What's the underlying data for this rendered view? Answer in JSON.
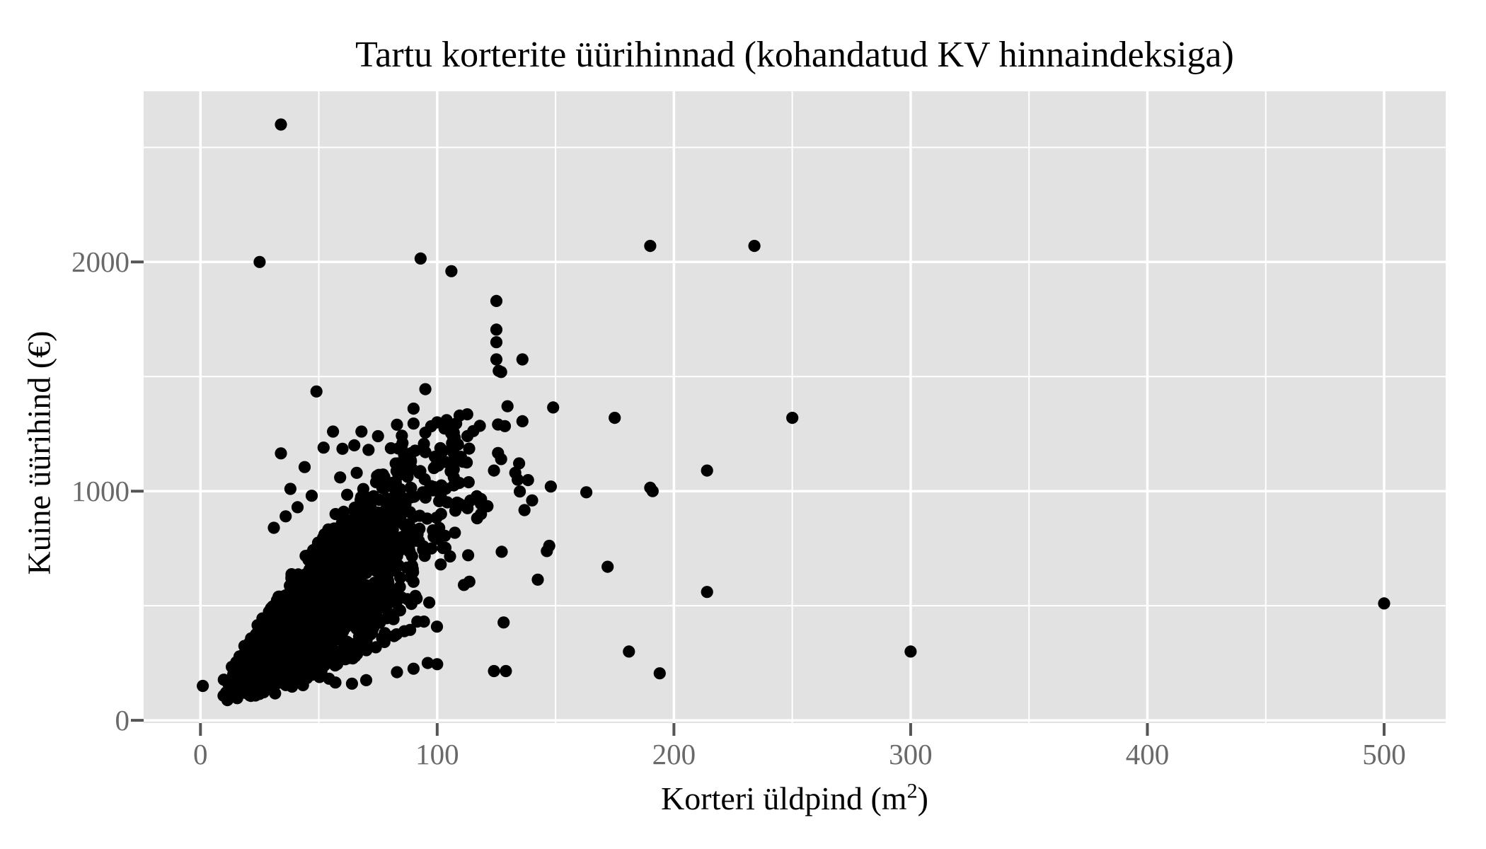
{
  "title": "Tartu korterite üürihinnad (kohandatud KV hinnaindeksiga)",
  "axes": {
    "x_label_prefix": "Korteri üldpind (m",
    "x_label_sup": "2",
    "x_label_suffix": ")",
    "y_label": "Kuine üürihind (€)"
  },
  "style": {
    "panel_bg": "#E2E2E2",
    "grid_color": "#FFFFFF",
    "tick_mark_color": "#555555",
    "tick_label_color": "#696969",
    "point_color": "#000000"
  },
  "chart_data": {
    "type": "scatter",
    "title": "Tartu korterite üürihinnad (kohandatud KV hinnaindeksiga)",
    "xlabel": "Korteri üldpind (m²)",
    "ylabel": "Kuine üürihind (€)",
    "x_ticks": [
      0,
      100,
      200,
      300,
      400,
      500
    ],
    "y_ticks": [
      0,
      1000,
      2000
    ],
    "x_minor": [
      50,
      150,
      250,
      350,
      450
    ],
    "y_minor": [
      500,
      1500,
      2500
    ],
    "xlim": [
      -24,
      526
    ],
    "ylim": [
      -12,
      2745
    ],
    "grid": true,
    "legend": "none",
    "point_radius_px": 8.6,
    "points": [
      [
        34,
        2600
      ],
      [
        25,
        2000
      ],
      [
        93,
        2015
      ],
      [
        106,
        1960
      ],
      [
        190,
        2070
      ],
      [
        234,
        2070
      ],
      [
        125,
        1830
      ],
      [
        125,
        1705
      ],
      [
        125,
        1650
      ],
      [
        125,
        1575
      ],
      [
        136,
        1575
      ],
      [
        126,
        1525
      ],
      [
        127,
        1520
      ],
      [
        95,
        1445
      ],
      [
        49,
        1435
      ],
      [
        90,
        1360
      ],
      [
        90,
        1295
      ],
      [
        95,
        1255
      ],
      [
        100,
        1300
      ],
      [
        104,
        1310
      ],
      [
        108,
        1295
      ],
      [
        118,
        1285
      ],
      [
        136,
        1305
      ],
      [
        175,
        1320
      ],
      [
        250,
        1320
      ],
      [
        86,
        1160
      ],
      [
        95,
        1170
      ],
      [
        100,
        1115
      ],
      [
        110,
        1150
      ],
      [
        124,
        1090
      ],
      [
        127,
        1140
      ],
      [
        133,
        1080
      ],
      [
        134,
        1050
      ],
      [
        107,
        1290
      ],
      [
        107,
        1255
      ],
      [
        107,
        1225
      ],
      [
        107,
        1195
      ],
      [
        107,
        1165
      ],
      [
        107,
        1130
      ],
      [
        107,
        1095
      ],
      [
        107,
        1060
      ],
      [
        107,
        1025
      ],
      [
        148,
        1020
      ],
      [
        163,
        995
      ],
      [
        190,
        1015
      ],
      [
        191,
        1000
      ],
      [
        214,
        1090
      ],
      [
        172,
        670
      ],
      [
        214,
        560
      ],
      [
        34,
        1165
      ],
      [
        38,
        1010
      ],
      [
        44,
        1105
      ],
      [
        52,
        1190
      ],
      [
        56,
        1260
      ],
      [
        60,
        1185
      ],
      [
        65,
        1200
      ],
      [
        68,
        1260
      ],
      [
        75,
        1240
      ],
      [
        83,
        1290
      ],
      [
        71,
        1180
      ],
      [
        66,
        1080
      ],
      [
        59,
        1060
      ],
      [
        47,
        980
      ],
      [
        41,
        930
      ],
      [
        36,
        890
      ],
      [
        31,
        840
      ],
      [
        181,
        300
      ],
      [
        194,
        205
      ],
      [
        300,
        300
      ],
      [
        500,
        510
      ],
      [
        1,
        150
      ],
      [
        124,
        215
      ],
      [
        129,
        215
      ],
      [
        100,
        245
      ],
      [
        83,
        210
      ],
      [
        90,
        225
      ],
      [
        96,
        250
      ],
      [
        70,
        175
      ],
      [
        64,
        160
      ],
      [
        57,
        165
      ]
    ],
    "cluster": {
      "description": "dense positively-correlated mass of rental listings, ~10-140 m2, ~100-1350 eur",
      "seed": 42,
      "count": 2600,
      "x_log_mean": 3.74,
      "x_log_sd": 0.45,
      "x_min": 4,
      "x_max": 150,
      "y_base": 40,
      "rate_min": 2.8,
      "rate_span": 12.5,
      "jitter": 60,
      "y_min": 82,
      "y_max": 1390
    }
  }
}
